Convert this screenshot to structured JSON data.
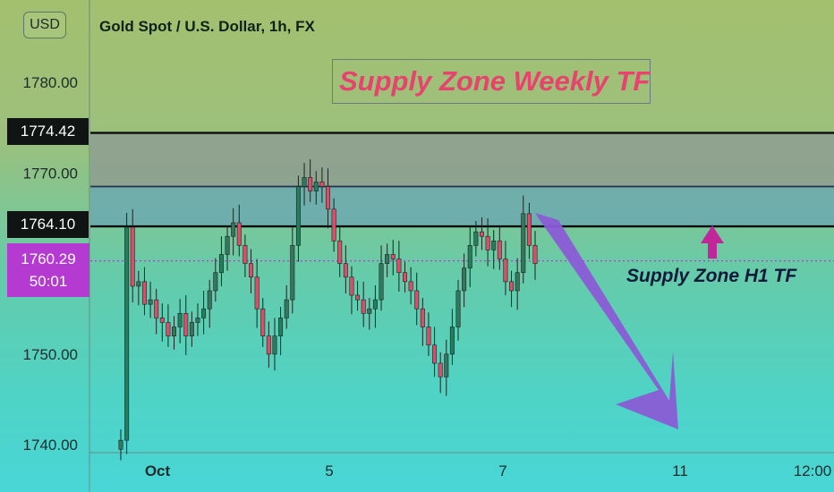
{
  "header": {
    "currency": "USD",
    "title": "Gold Spot / U.S. Dollar, 1h, FX"
  },
  "annotations": {
    "weekly_zone": "Supply Zone Weekly TF",
    "h1_zone": "Supply Zone H1 TF"
  },
  "price_tags": {
    "level_1": "1774.42",
    "level_2": "1764.10",
    "current_price": "1760.29",
    "countdown": "50:01"
  },
  "colors": {
    "weekly_zone_text": "#e8426e",
    "h1_zone_text": "#0d1a3a",
    "arrow_down": "#8a5cd6",
    "arrow_up": "#c0289a",
    "current_price_tag": "#b53ad1",
    "candle_up": "#2f7a5e",
    "candle_down": "#d94f6a"
  },
  "chart_data": {
    "type": "line",
    "title": "Gold Spot / U.S. Dollar, 1h, FX",
    "xlabel": "",
    "ylabel": "USD",
    "ylim": [
      1740,
      1785
    ],
    "y_ticks": [
      {
        "value": 1780,
        "label": "1780.00"
      },
      {
        "value": 1770,
        "label": "1770.00"
      },
      {
        "value": 1750,
        "label": "1750.00"
      },
      {
        "value": 1740,
        "label": "1740.00"
      }
    ],
    "x_ticks": [
      "Oct",
      "5",
      "7",
      "11",
      "12:00"
    ],
    "levels": [
      {
        "name": "1774.42",
        "value": 1774.42
      },
      {
        "name": "1768.5",
        "value": 1768.5
      },
      {
        "name": "1764.10",
        "value": 1764.1
      }
    ],
    "current_price": 1760.29,
    "zones": [
      {
        "name": "Supply Zone Weekly TF",
        "from": 1768.5,
        "to": 1774.42
      },
      {
        "name": "Supply Zone H1 TF",
        "from": 1764.1,
        "to": 1768.5
      }
    ],
    "series": [
      {
        "values": [
          1740.5,
          1764.0,
          1757.5,
          1758.0,
          1755.5,
          1756.0,
          1754.0,
          1753.5,
          1752.0,
          1753.0,
          1754.5,
          1752.0,
          1753.5,
          1754.0,
          1755.0,
          1757.0,
          1759.0,
          1761.0,
          1763.0,
          1764.5,
          1762.0,
          1760.0,
          1758.5,
          1755.0,
          1752.0,
          1750.0,
          1752.0,
          1754.0,
          1756.0,
          1762.0,
          1768.5,
          1769.5,
          1768.0,
          1769.0,
          1768.5,
          1766.0,
          1762.5,
          1760.0,
          1758.5,
          1756.5,
          1756.0,
          1754.5,
          1755.0,
          1756.0,
          1760.0,
          1761.0,
          1760.5,
          1759.0,
          1758.0,
          1757.0,
          1755.0,
          1753.0,
          1751.0,
          1749.0,
          1747.5,
          1750.0,
          1753.0,
          1757.0,
          1759.5,
          1762.0,
          1763.5,
          1763.0,
          1761.5,
          1762.5,
          1760.5,
          1758.0,
          1757.0,
          1759.0,
          1765.5,
          1762.0,
          1760.0
        ]
      }
    ]
  }
}
